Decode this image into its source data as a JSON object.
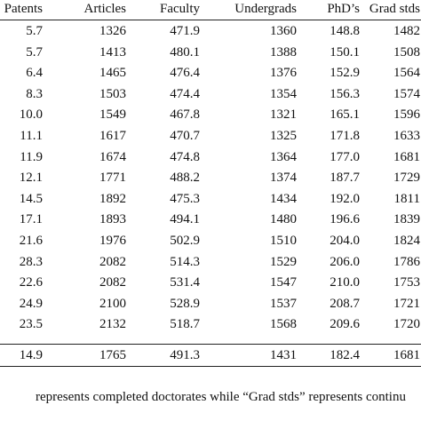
{
  "table": {
    "header": [
      "Patents",
      "Articles",
      "Faculty",
      "Undergrads",
      "PhD’s",
      "Grad stds"
    ],
    "rows": [
      [
        "5.7",
        "1326",
        "471.9",
        "1360",
        "148.8",
        "1482"
      ],
      [
        "5.7",
        "1413",
        "480.1",
        "1388",
        "150.1",
        "1508"
      ],
      [
        "6.4",
        "1465",
        "476.4",
        "1376",
        "152.9",
        "1564"
      ],
      [
        "8.3",
        "1503",
        "474.4",
        "1354",
        "156.3",
        "1574"
      ],
      [
        "10.0",
        "1549",
        "467.8",
        "1321",
        "165.1",
        "1596"
      ],
      [
        "11.1",
        "1617",
        "470.7",
        "1325",
        "171.8",
        "1633"
      ],
      [
        "11.9",
        "1674",
        "474.8",
        "1364",
        "177.0",
        "1681"
      ],
      [
        "12.1",
        "1771",
        "488.2",
        "1374",
        "187.7",
        "1729"
      ],
      [
        "14.5",
        "1892",
        "475.3",
        "1434",
        "192.0",
        "1811"
      ],
      [
        "17.1",
        "1893",
        "494.1",
        "1480",
        "196.6",
        "1839"
      ],
      [
        "21.6",
        "1976",
        "502.9",
        "1510",
        "204.0",
        "1824"
      ],
      [
        "28.3",
        "2082",
        "514.3",
        "1529",
        "206.0",
        "1786"
      ],
      [
        "22.6",
        "2082",
        "531.4",
        "1547",
        "210.0",
        "1753"
      ],
      [
        "24.9",
        "2100",
        "528.9",
        "1537",
        "208.7",
        "1721"
      ],
      [
        "23.5",
        "2132",
        "518.7",
        "1568",
        "209.6",
        "1720"
      ]
    ],
    "footer": [
      "14.9",
      "1765",
      "491.3",
      "1431",
      "182.4",
      "1681"
    ]
  },
  "footnote": "represents completed doctorates while “Grad stds” represents continu"
}
